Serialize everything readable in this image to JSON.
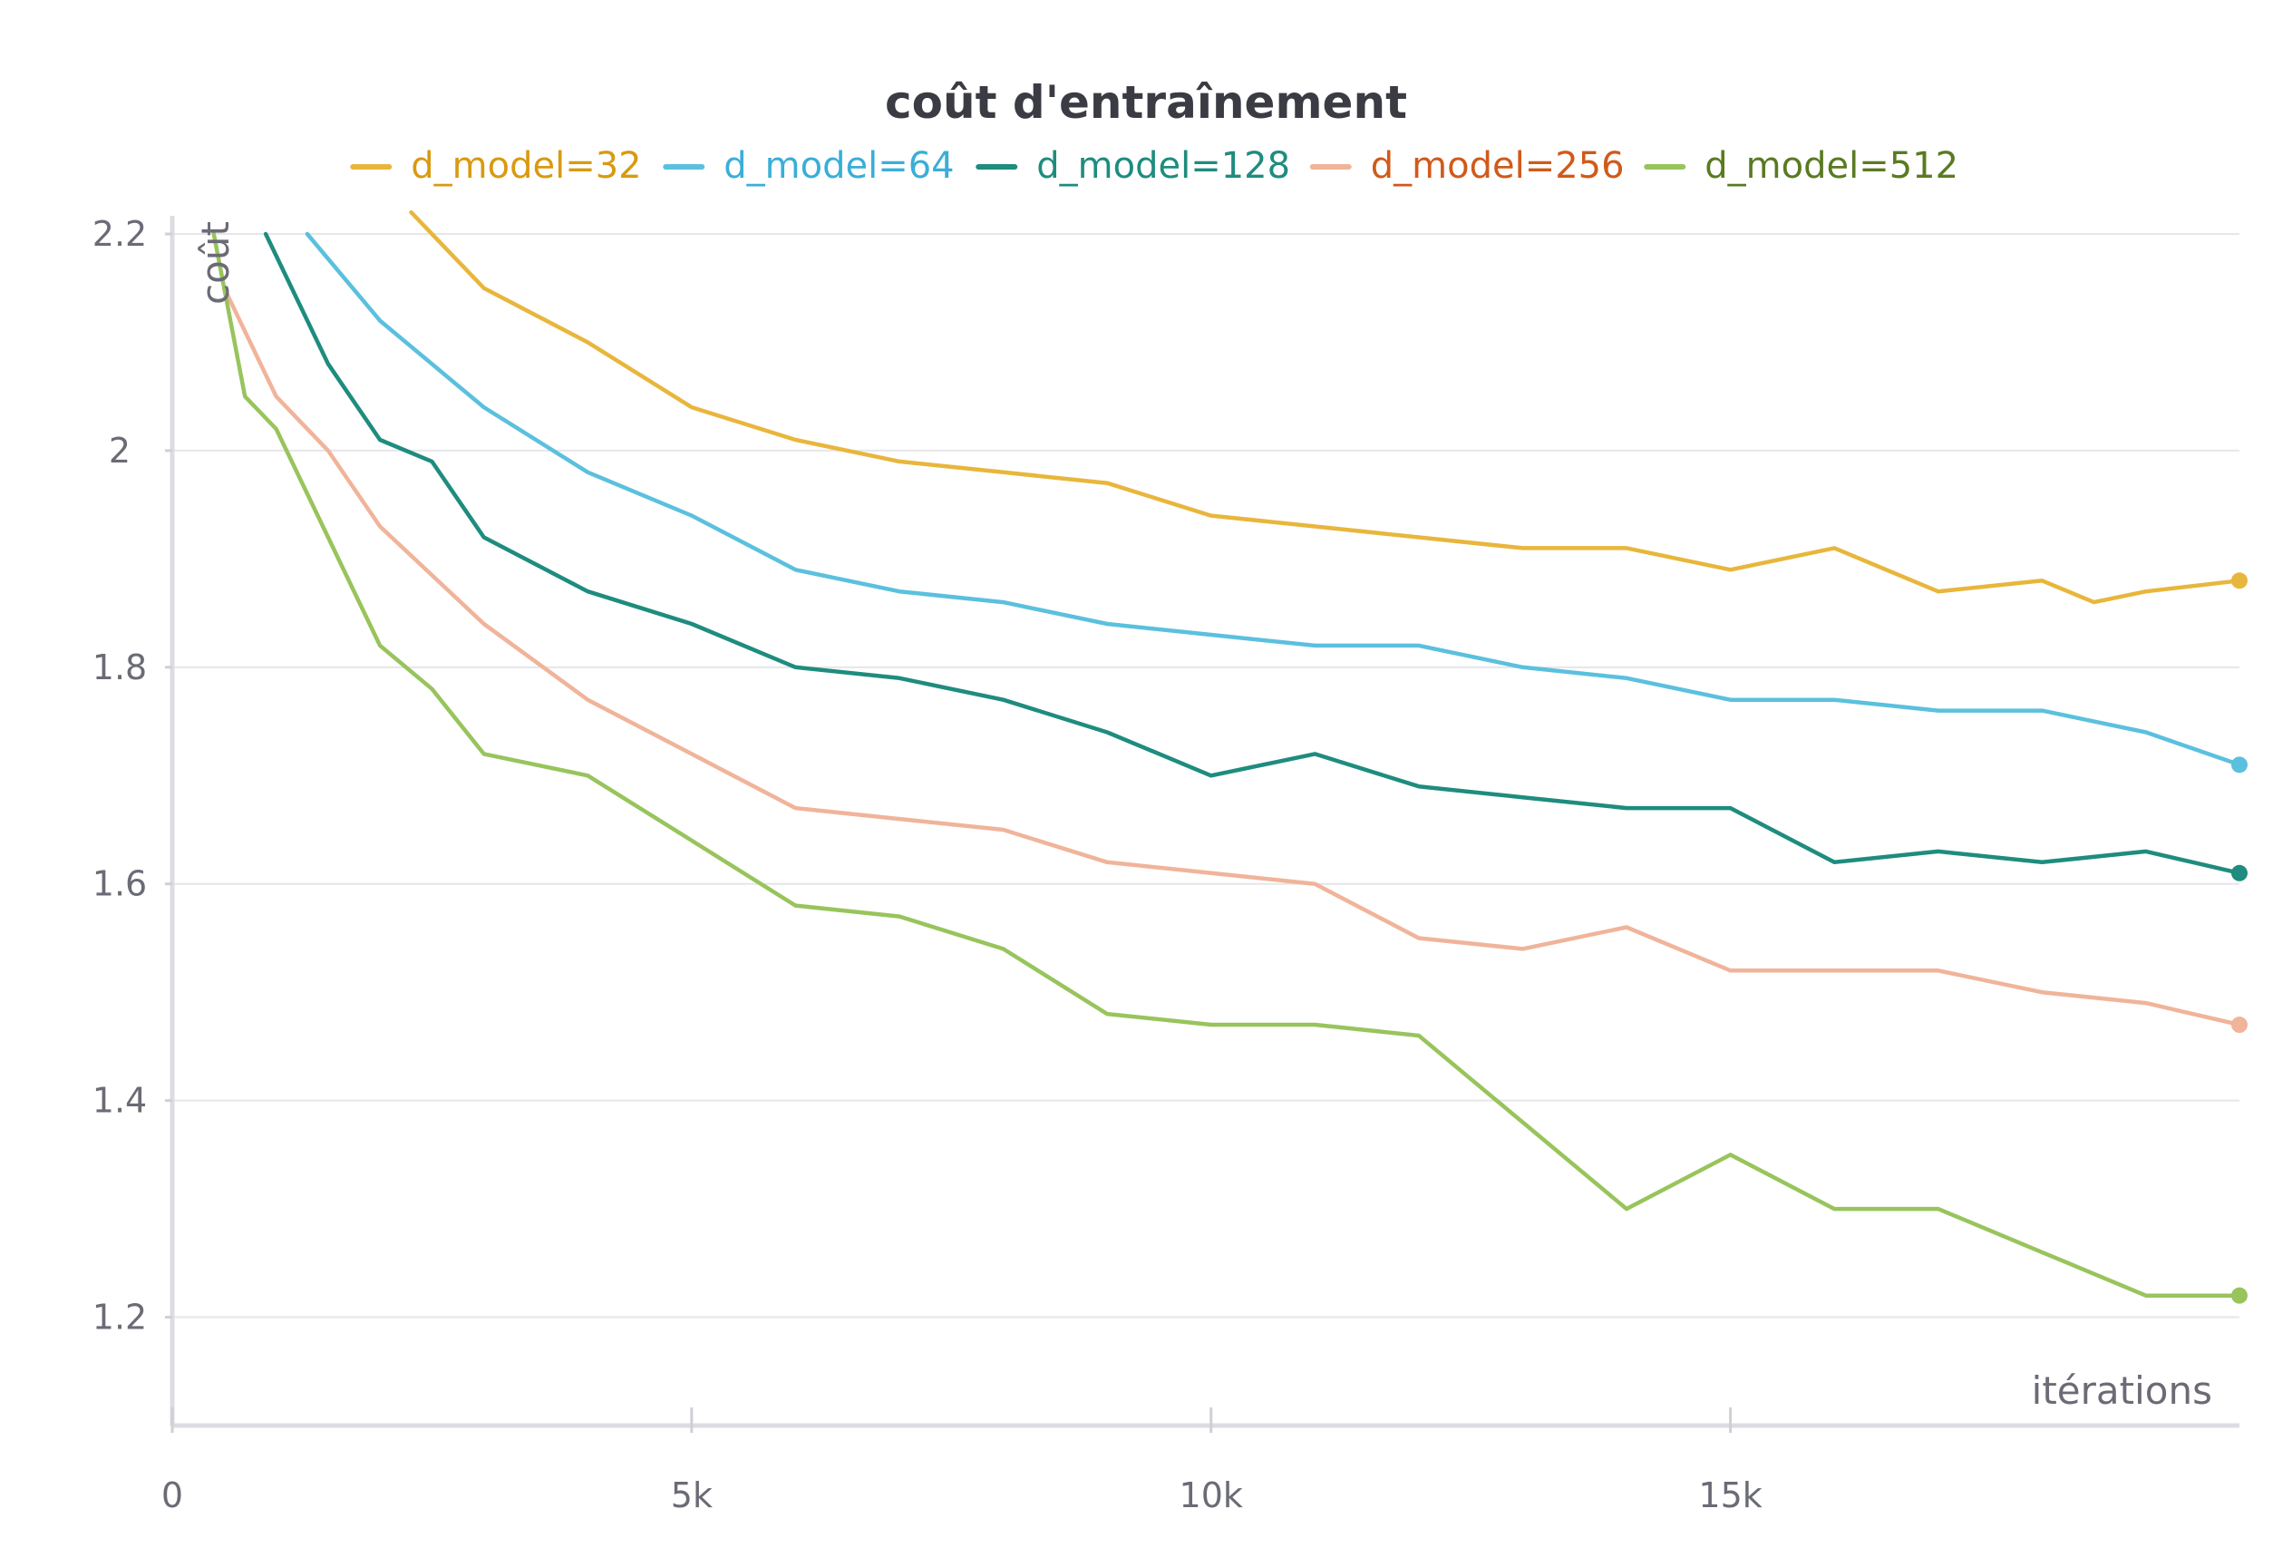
{
  "chart_data": {
    "type": "line",
    "title": "coût d'entraînement",
    "xlabel": "itérations",
    "ylabel": "coût",
    "xlim": [
      0,
      19900
    ],
    "ylim": [
      1.1,
      2.2
    ],
    "x_ticks": [
      0,
      5000,
      10000,
      15000
    ],
    "x_tick_labels": [
      "0",
      "5k",
      "10k",
      "15k"
    ],
    "y_ticks": [
      1.2,
      1.4,
      1.6,
      1.8,
      2.0,
      2.2
    ],
    "y_tick_labels": [
      "1.2",
      "1.4",
      "1.6",
      "1.8",
      "2",
      "2.2"
    ],
    "grid": true,
    "legend_position": "top",
    "series": [
      {
        "name": "d_model=32",
        "color": "#e8b63c",
        "label_color": "#d89a10",
        "x": [
          2300,
          3000,
          4000,
          5000,
          6000,
          7000,
          8000,
          9000,
          10000,
          11000,
          12000,
          13000,
          14000,
          15000,
          16000,
          17000,
          18000,
          18500,
          19000,
          19900
        ],
        "y": [
          2.22,
          2.15,
          2.1,
          2.04,
          2.01,
          1.99,
          1.98,
          1.97,
          1.94,
          1.93,
          1.92,
          1.91,
          1.91,
          1.89,
          1.91,
          1.87,
          1.88,
          1.86,
          1.87,
          1.88
        ]
      },
      {
        "name": "d_model=64",
        "color": "#5bc0de",
        "label_color": "#3aaed8",
        "x": [
          1300,
          2000,
          3000,
          4000,
          5000,
          6000,
          7000,
          8000,
          9000,
          10000,
          11000,
          12000,
          13000,
          14000,
          15000,
          16000,
          17000,
          18000,
          19000,
          19900
        ],
        "y": [
          2.2,
          2.12,
          2.04,
          1.98,
          1.94,
          1.89,
          1.87,
          1.86,
          1.84,
          1.83,
          1.82,
          1.82,
          1.8,
          1.79,
          1.77,
          1.77,
          1.76,
          1.76,
          1.74,
          1.71
        ]
      },
      {
        "name": "d_model=128",
        "color": "#1e8c7e",
        "label_color": "#1e8c7e",
        "x": [
          900,
          1500,
          2000,
          2500,
          3000,
          4000,
          5000,
          6000,
          7000,
          8000,
          9000,
          10000,
          11000,
          12000,
          13000,
          14000,
          15000,
          16000,
          17000,
          18000,
          19000,
          19900
        ],
        "y": [
          2.2,
          2.08,
          2.01,
          1.99,
          1.92,
          1.87,
          1.84,
          1.8,
          1.79,
          1.77,
          1.74,
          1.7,
          1.72,
          1.69,
          1.68,
          1.67,
          1.67,
          1.62,
          1.63,
          1.62,
          1.63,
          1.61
        ]
      },
      {
        "name": "d_model=256",
        "color": "#f0b49a",
        "label_color": "#d05a1a",
        "x": [
          500,
          1000,
          1500,
          2000,
          3000,
          4000,
          5000,
          6000,
          7000,
          8000,
          9000,
          10000,
          11000,
          12000,
          13000,
          14000,
          15000,
          16000,
          17000,
          18000,
          19000,
          19900
        ],
        "y": [
          2.15,
          2.05,
          2.0,
          1.93,
          1.84,
          1.77,
          1.72,
          1.67,
          1.66,
          1.65,
          1.62,
          1.61,
          1.6,
          1.55,
          1.54,
          1.56,
          1.52,
          1.52,
          1.52,
          1.5,
          1.49,
          1.47
        ]
      },
      {
        "name": "d_model=512",
        "color": "#98c45c",
        "label_color": "#5a7a22",
        "x": [
          400,
          700,
          1000,
          1500,
          2000,
          2500,
          3000,
          4000,
          5000,
          6000,
          7000,
          8000,
          9000,
          10000,
          11000,
          12000,
          13000,
          14000,
          15000,
          16000,
          17000,
          18000,
          19000,
          19900
        ],
        "y": [
          2.2,
          2.05,
          2.02,
          1.92,
          1.82,
          1.78,
          1.72,
          1.7,
          1.64,
          1.58,
          1.57,
          1.54,
          1.48,
          1.47,
          1.47,
          1.46,
          1.38,
          1.3,
          1.35,
          1.3,
          1.3,
          1.26,
          1.22,
          1.22
        ]
      }
    ]
  }
}
